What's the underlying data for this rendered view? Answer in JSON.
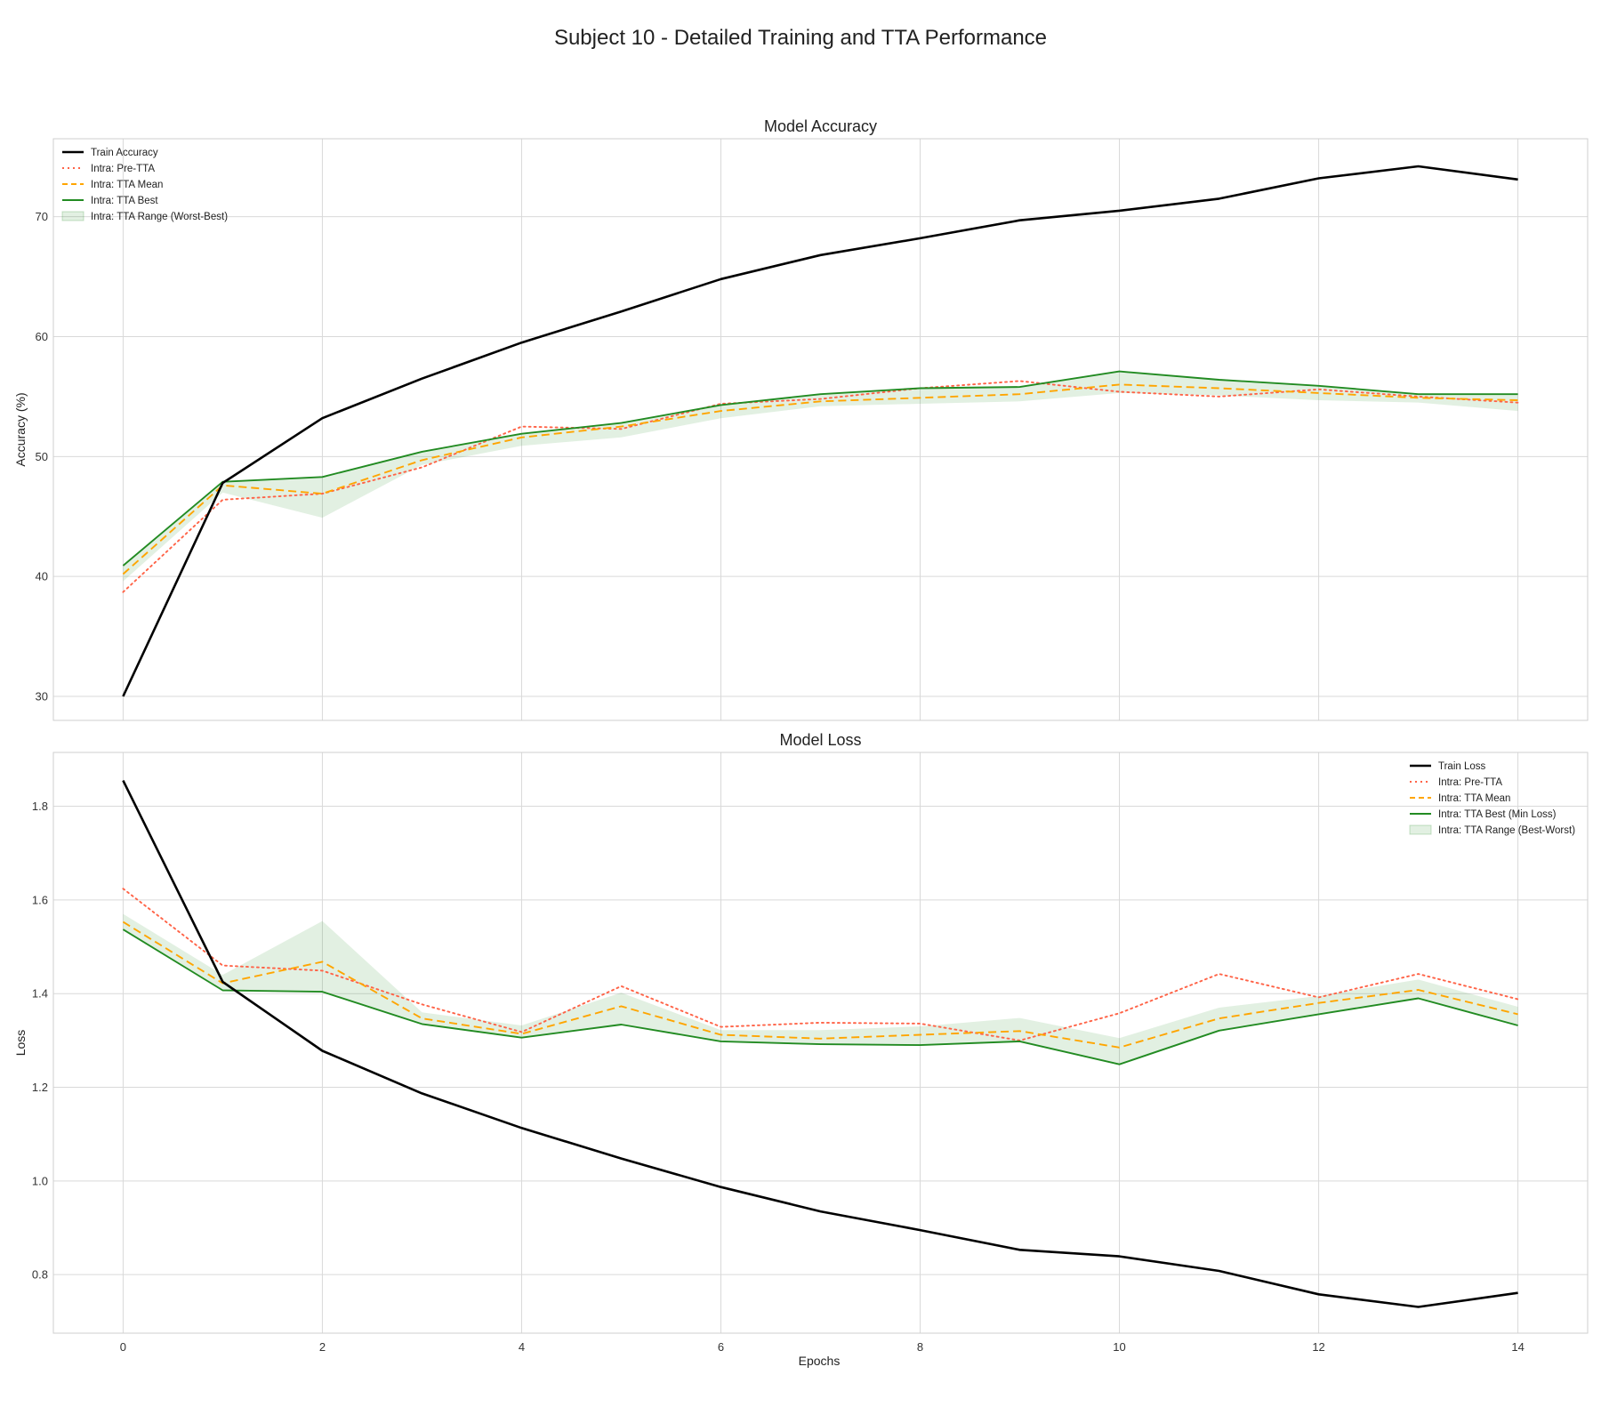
{
  "figure": {
    "title": "Subject 10 - Detailed Training and TTA Performance",
    "xlabel": "Epochs"
  },
  "chart_data": [
    {
      "type": "line",
      "title": "Model Accuracy",
      "xlabel": "",
      "ylabel": "Accuracy (%)",
      "xlim": [
        -0.7,
        14.7
      ],
      "ylim": [
        28,
        76.5
      ],
      "xticks": [
        0,
        2,
        4,
        6,
        8,
        10,
        12,
        14
      ],
      "yticks": [
        30,
        40,
        50,
        60,
        70
      ],
      "grid": true,
      "legend_position": "upper-left",
      "x": [
        0,
        1,
        2,
        3,
        4,
        5,
        6,
        7,
        8,
        9,
        10,
        11,
        12,
        13,
        14
      ],
      "series": [
        {
          "name": "Train Accuracy",
          "color": "#000000",
          "style": "solid",
          "values": [
            30.0,
            47.8,
            53.2,
            56.5,
            59.5,
            62.1,
            64.8,
            66.8,
            68.2,
            69.7,
            70.5,
            71.5,
            73.2,
            74.2,
            73.1
          ]
        },
        {
          "name": "Intra: Pre-TTA",
          "color": "#ff6347",
          "style": "dotted",
          "values": [
            38.7,
            46.4,
            46.9,
            49.1,
            52.5,
            52.3,
            54.4,
            54.8,
            55.7,
            56.3,
            55.4,
            55.0,
            55.6,
            55.0,
            54.5
          ]
        },
        {
          "name": "Intra: TTA Mean",
          "color": "#ffa500",
          "style": "dashed",
          "values": [
            40.2,
            47.6,
            46.9,
            49.7,
            51.6,
            52.5,
            53.8,
            54.6,
            54.9,
            55.2,
            56.0,
            55.7,
            55.3,
            54.9,
            54.7
          ]
        },
        {
          "name": "Intra: TTA Best",
          "color": "#228b22",
          "style": "solid",
          "values": [
            40.9,
            47.9,
            48.3,
            50.4,
            51.9,
            52.8,
            54.3,
            55.2,
            55.7,
            55.8,
            57.1,
            56.4,
            55.9,
            55.2,
            55.2
          ]
        }
      ],
      "band": {
        "name": "Intra: TTA Range (Worst-Best)",
        "color": "#228b22",
        "lower": [
          39.6,
          47.0,
          44.9,
          49.3,
          50.9,
          51.6,
          53.2,
          54.2,
          54.4,
          54.6,
          55.3,
          55.1,
          54.7,
          54.5,
          53.8
        ],
        "upper": [
          40.9,
          47.9,
          48.3,
          50.4,
          51.9,
          52.8,
          54.3,
          55.2,
          55.7,
          55.8,
          57.1,
          56.4,
          55.9,
          55.2,
          55.2
        ]
      }
    },
    {
      "type": "line",
      "title": "Model Loss",
      "xlabel": "Epochs",
      "ylabel": "Loss",
      "xlim": [
        -0.7,
        14.7
      ],
      "ylim": [
        0.675,
        1.915
      ],
      "xticks": [
        0,
        2,
        4,
        6,
        8,
        10,
        12,
        14
      ],
      "yticks": [
        0.8,
        1.0,
        1.2,
        1.4,
        1.6,
        1.8
      ],
      "grid": true,
      "legend_position": "upper-right",
      "x": [
        0,
        1,
        2,
        3,
        4,
        5,
        6,
        7,
        8,
        9,
        10,
        11,
        12,
        13,
        14
      ],
      "series": [
        {
          "name": "Train Loss",
          "color": "#000000",
          "style": "solid",
          "values": [
            1.855,
            1.425,
            1.278,
            1.187,
            1.113,
            1.048,
            0.987,
            0.935,
            0.895,
            0.853,
            0.839,
            0.808,
            0.758,
            0.731,
            0.761
          ]
        },
        {
          "name": "Intra: Pre-TTA",
          "color": "#ff6347",
          "style": "dotted",
          "values": [
            1.624,
            1.46,
            1.449,
            1.377,
            1.318,
            1.416,
            1.329,
            1.338,
            1.336,
            1.3,
            1.358,
            1.442,
            1.392,
            1.442,
            1.388
          ]
        },
        {
          "name": "Intra: TTA Mean",
          "color": "#ffa500",
          "style": "dashed",
          "values": [
            1.553,
            1.422,
            1.468,
            1.347,
            1.314,
            1.373,
            1.312,
            1.304,
            1.312,
            1.32,
            1.285,
            1.347,
            1.38,
            1.408,
            1.356
          ]
        },
        {
          "name": "Intra: TTA Best (Min Loss)",
          "color": "#228b22",
          "style": "solid",
          "values": [
            1.537,
            1.407,
            1.404,
            1.335,
            1.306,
            1.334,
            1.298,
            1.292,
            1.29,
            1.298,
            1.249,
            1.321,
            1.356,
            1.39,
            1.332
          ]
        }
      ],
      "band": {
        "name": "Intra: TTA Range (Best-Worst)",
        "color": "#228b22",
        "lower": [
          1.537,
          1.407,
          1.404,
          1.335,
          1.306,
          1.334,
          1.298,
          1.292,
          1.29,
          1.298,
          1.249,
          1.321,
          1.356,
          1.39,
          1.332
        ],
        "upper": [
          1.57,
          1.44,
          1.555,
          1.36,
          1.332,
          1.402,
          1.322,
          1.322,
          1.33,
          1.348,
          1.305,
          1.37,
          1.395,
          1.43,
          1.372
        ]
      }
    }
  ]
}
